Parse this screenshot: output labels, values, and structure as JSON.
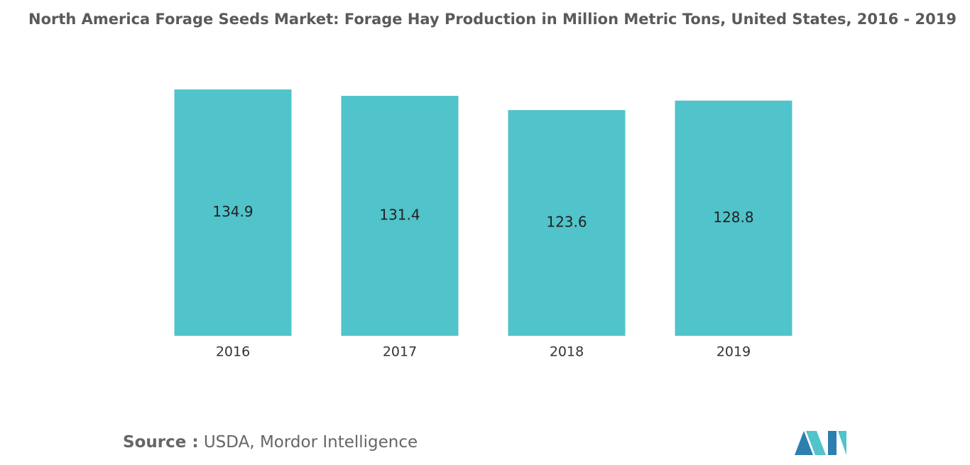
{
  "chart_data": {
    "type": "bar",
    "title": "North America Forage Seeds Market: Forage Hay Production in Million Metric Tons, United States, 2016 - 2019",
    "categories": [
      "2016",
      "2017",
      "2018",
      "2019"
    ],
    "values": [
      134.9,
      131.4,
      123.6,
      128.8
    ],
    "color": "#51c3ca",
    "source_label": "Source :",
    "source": "USDA, Mordor Intelligence"
  }
}
